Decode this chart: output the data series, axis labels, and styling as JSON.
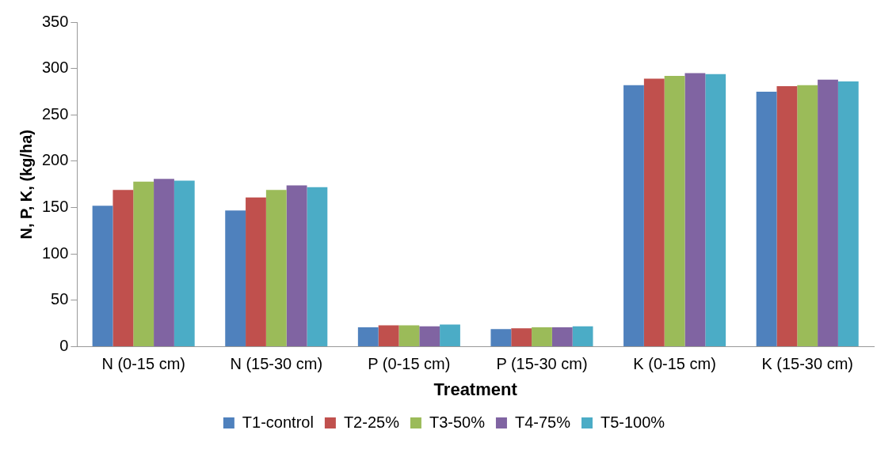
{
  "chart_data": {
    "type": "bar",
    "xlabel": "Treatment",
    "ylabel": "N, P, K, (kg/ha)",
    "categories": [
      "N (0-15 cm)",
      "N (15-30 cm)",
      "P (0-15 cm)",
      "P (15-30 cm)",
      "K (0-15 cm)",
      "K (15-30 cm)"
    ],
    "series": [
      {
        "name": "T1-control",
        "color": "#4f81bd",
        "values": [
          152,
          147,
          21,
          19,
          282,
          275
        ]
      },
      {
        "name": "T2-25%",
        "color": "#c0504d",
        "values": [
          169,
          161,
          23,
          20,
          289,
          281
        ]
      },
      {
        "name": "T3-50%",
        "color": "#9bbb59",
        "values": [
          178,
          169,
          23,
          21,
          292,
          282
        ]
      },
      {
        "name": "T4-75%",
        "color": "#8064a2",
        "values": [
          181,
          174,
          22,
          21,
          295,
          288
        ]
      },
      {
        "name": "T5-100%",
        "color": "#4bacc6",
        "values": [
          179,
          172,
          24,
          22,
          294,
          286
        ]
      }
    ],
    "ylim": [
      0,
      350
    ],
    "yticks": [
      0,
      50,
      100,
      150,
      200,
      250,
      300,
      350
    ],
    "grid": false,
    "legend": "bottom"
  }
}
